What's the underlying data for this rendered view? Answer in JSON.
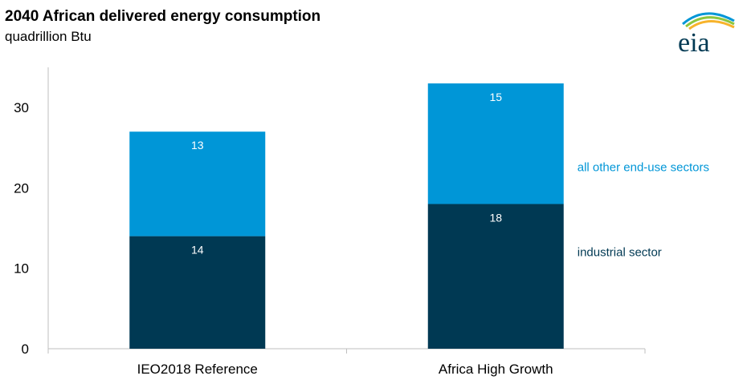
{
  "header": {
    "title": "2040 African delivered energy consumption",
    "subtitle": "quadrillion Btu"
  },
  "logo": {
    "text": "eia"
  },
  "colors": {
    "industrial": "#003953",
    "other": "#0096d7",
    "axis": "#bfbfbf"
  },
  "chart_data": {
    "type": "bar",
    "stacked": true,
    "categories": [
      "IEO2018 Reference",
      "Africa High Growth"
    ],
    "series": [
      {
        "name": "industrial sector",
        "values": [
          14,
          18
        ]
      },
      {
        "name": "all other end-use sectors",
        "values": [
          13,
          15
        ]
      }
    ],
    "data_labels": [
      [
        "14",
        "18"
      ],
      [
        "13",
        "15"
      ]
    ],
    "yticks": [
      0,
      10,
      20,
      30
    ],
    "ylim": [
      0,
      35
    ],
    "title": "2040 African delivered energy consumption",
    "ylabel": "quadrillion Btu",
    "xlabel": "",
    "grid": false,
    "legend_placement": "right, inline labels"
  }
}
